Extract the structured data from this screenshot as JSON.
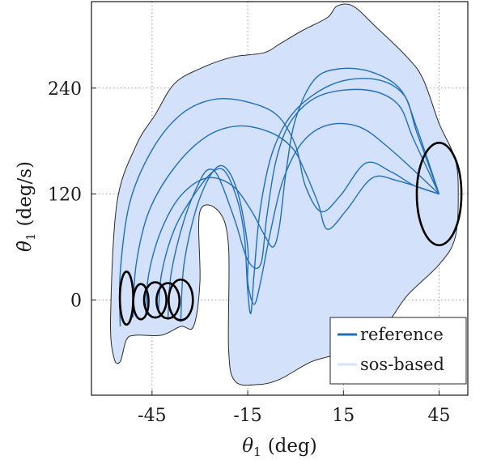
{
  "chart_data": {
    "type": "line",
    "xlabel": "θ₁ (deg)",
    "ylabel": "θ̇₁ (deg/s)",
    "xlim": [
      -64,
      54
    ],
    "ylim": [
      -108,
      338
    ],
    "xticks": [
      -45,
      -15,
      15,
      45
    ],
    "xtick_labels": [
      "-45",
      "-15",
      "15",
      "45"
    ],
    "yticks": [
      0,
      120,
      240
    ],
    "ytick_labels": [
      "0",
      "120",
      "240"
    ],
    "grid": true,
    "legend_position": "bottom-right",
    "colors": {
      "reference": "#1f6fb8",
      "region_fill": "#d4e1fa",
      "region_edge": "#2a2a2a",
      "ellipse": "#000000"
    },
    "series": [
      {
        "name": "reference",
        "kind": "line",
        "trajectories": [
          [
            [
              -55,
              -30
            ],
            [
              -55,
              30
            ],
            [
              -52,
              110
            ],
            [
              -45,
              170
            ],
            [
              -36,
              210
            ],
            [
              -26,
              227
            ],
            [
              -16,
              225
            ],
            [
              -6,
              210
            ],
            [
              0,
              175
            ],
            [
              3,
              130
            ],
            [
              8,
              100
            ],
            [
              14,
              118
            ],
            [
              22,
              155
            ],
            [
              30,
              145
            ],
            [
              37,
              130
            ],
            [
              45,
              120
            ]
          ],
          [
            [
              -51,
              -20
            ],
            [
              -50,
              40
            ],
            [
              -46,
              100
            ],
            [
              -38,
              150
            ],
            [
              -28,
              185
            ],
            [
              -18,
              197
            ],
            [
              -8,
              190
            ],
            [
              -1,
              172
            ],
            [
              3,
              145
            ],
            [
              7,
              110
            ],
            [
              10,
              80
            ],
            [
              16,
              102
            ],
            [
              24,
              138
            ],
            [
              32,
              135
            ],
            [
              45,
              120
            ]
          ],
          [
            [
              -47,
              -15
            ],
            [
              -46,
              30
            ],
            [
              -42,
              80
            ],
            [
              -36,
              118
            ],
            [
              -28,
              138
            ],
            [
              -20,
              130
            ],
            [
              -14,
              102
            ],
            [
              -10,
              75
            ],
            [
              -7,
              60
            ],
            [
              -5,
              85
            ],
            [
              -3,
              145
            ],
            [
              0,
              205
            ],
            [
              6,
              250
            ],
            [
              14,
              262
            ],
            [
              24,
              258
            ],
            [
              33,
              238
            ],
            [
              38,
              195
            ],
            [
              45,
              120
            ]
          ],
          [
            [
              -43,
              -15
            ],
            [
              -42,
              30
            ],
            [
              -38,
              80
            ],
            [
              -32,
              118
            ],
            [
              -26,
              145
            ],
            [
              -22,
              145
            ],
            [
              -18,
              110
            ],
            [
              -16,
              70
            ],
            [
              -15,
              10
            ],
            [
              -14,
              -15
            ],
            [
              -13,
              30
            ],
            [
              -11,
              105
            ],
            [
              -7,
              170
            ],
            [
              0,
              215
            ],
            [
              12,
              245
            ],
            [
              25,
              250
            ],
            [
              34,
              232
            ],
            [
              38,
              190
            ],
            [
              45,
              120
            ]
          ],
          [
            [
              -40,
              -20
            ],
            [
              -39,
              30
            ],
            [
              -35,
              90
            ],
            [
              -30,
              135
            ],
            [
              -27,
              148
            ],
            [
              -24,
              138
            ],
            [
              -19,
              90
            ],
            [
              -15,
              45
            ],
            [
              -11,
              40
            ],
            [
              -9,
              95
            ],
            [
              -6,
              160
            ],
            [
              -1,
              205
            ],
            [
              8,
              232
            ],
            [
              22,
              238
            ],
            [
              32,
              222
            ],
            [
              37,
              182
            ],
            [
              45,
              120
            ]
          ],
          [
            [
              -36,
              -25
            ],
            [
              -35,
              40
            ],
            [
              -31,
              105
            ],
            [
              -26,
              145
            ],
            [
              -22,
              150
            ],
            [
              -18,
              120
            ],
            [
              -15,
              60
            ],
            [
              -15,
              20
            ],
            [
              -13,
              -5
            ],
            [
              -11,
              20
            ],
            [
              -8,
              75
            ],
            [
              -4,
              135
            ],
            [
              2,
              178
            ],
            [
              10,
              198
            ],
            [
              20,
              196
            ],
            [
              30,
              170
            ],
            [
              45,
              120
            ]
          ]
        ]
      },
      {
        "name": "sos-based",
        "kind": "region",
        "outline": [
          [
            -57,
            -65
          ],
          [
            -58,
            -20
          ],
          [
            -56,
            110
          ],
          [
            -50,
            175
          ],
          [
            -44,
            210
          ],
          [
            -38,
            245
          ],
          [
            -30,
            262
          ],
          [
            -20,
            275
          ],
          [
            -10,
            280
          ],
          [
            -5,
            290
          ],
          [
            2,
            305
          ],
          [
            10,
            320
          ],
          [
            13,
            333
          ],
          [
            18,
            333
          ],
          [
            25,
            310
          ],
          [
            35,
            275
          ],
          [
            40,
            250
          ],
          [
            45,
            200
          ],
          [
            50,
            160
          ],
          [
            51,
            120
          ],
          [
            50,
            70
          ],
          [
            45,
            40
          ],
          [
            35,
            5
          ],
          [
            28,
            -30
          ],
          [
            20,
            -50
          ],
          [
            15,
            -60
          ],
          [
            5,
            -70
          ],
          [
            -5,
            -90
          ],
          [
            -12,
            -96
          ],
          [
            -19,
            -92
          ],
          [
            -21,
            -55
          ],
          [
            -21,
            60
          ],
          [
            -24,
            100
          ],
          [
            -30,
            100
          ],
          [
            -30,
            20
          ],
          [
            -32,
            -30
          ],
          [
            -36,
            -30
          ],
          [
            -42,
            -40
          ],
          [
            -50,
            -40
          ],
          [
            -53,
            -45
          ],
          [
            -55,
            -70
          ]
        ]
      }
    ],
    "ellipses": [
      {
        "cx": 45,
        "cy": 120,
        "rx": 7,
        "ry": 58
      },
      {
        "cx": -53,
        "cy": 2,
        "rx": 2.1,
        "ry": 30
      },
      {
        "cx": -48.5,
        "cy": -2,
        "rx": 2.4,
        "ry": 20
      },
      {
        "cx": -44,
        "cy": 0,
        "rx": 3.5,
        "ry": 20
      },
      {
        "cx": -40,
        "cy": -1,
        "rx": 3.6,
        "ry": 20
      },
      {
        "cx": -36,
        "cy": 0,
        "rx": 3.8,
        "ry": 23
      }
    ],
    "legend": [
      "reference",
      "sos-based"
    ]
  }
}
